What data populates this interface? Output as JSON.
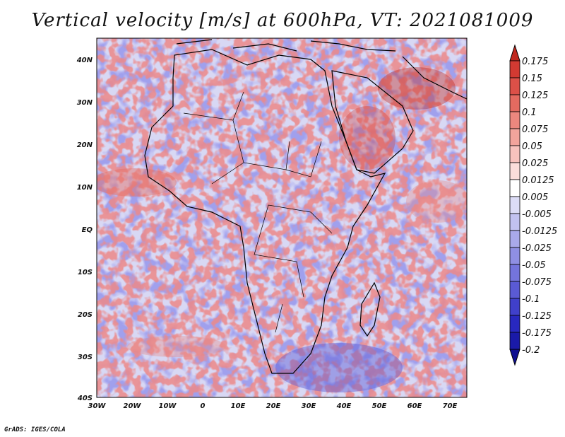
{
  "title": "Vertical velocity [m/s] at 600hPa, VT: 2021081009",
  "credit": "GrADS: IGES/COLA",
  "map": {
    "lon_range": [
      -30,
      75
    ],
    "lat_range": [
      -40,
      45
    ],
    "x_ticks": [
      "30W",
      "20W",
      "10W",
      "0",
      "10E",
      "20E",
      "30E",
      "40E",
      "50E",
      "60E",
      "70E"
    ],
    "y_ticks": [
      "40N",
      "30N",
      "20N",
      "10N",
      "EQ",
      "10S",
      "20S",
      "30S",
      "40S"
    ]
  },
  "colorbar": {
    "labels": [
      "0.175",
      "0.15",
      "0.125",
      "0.1",
      "0.075",
      "0.05",
      "0.025",
      "0.0125",
      "0.005",
      "-0.005",
      "-0.0125",
      "-0.025",
      "-0.05",
      "-0.075",
      "-0.1",
      "-0.125",
      "-0.175",
      "-0.2"
    ],
    "colors": [
      "#c0281e",
      "#d23a32",
      "#dc5048",
      "#e46a60",
      "#ec877e",
      "#f2a49c",
      "#f7c2bd",
      "#fbdedb",
      "#ffffff",
      "#dcdcf6",
      "#c2c2f0",
      "#a9a9ea",
      "#8f8fe3",
      "#7474dc",
      "#5a5ad4",
      "#4040cb",
      "#2828bf",
      "#1a1aa8",
      "#0e0e90"
    ]
  }
}
